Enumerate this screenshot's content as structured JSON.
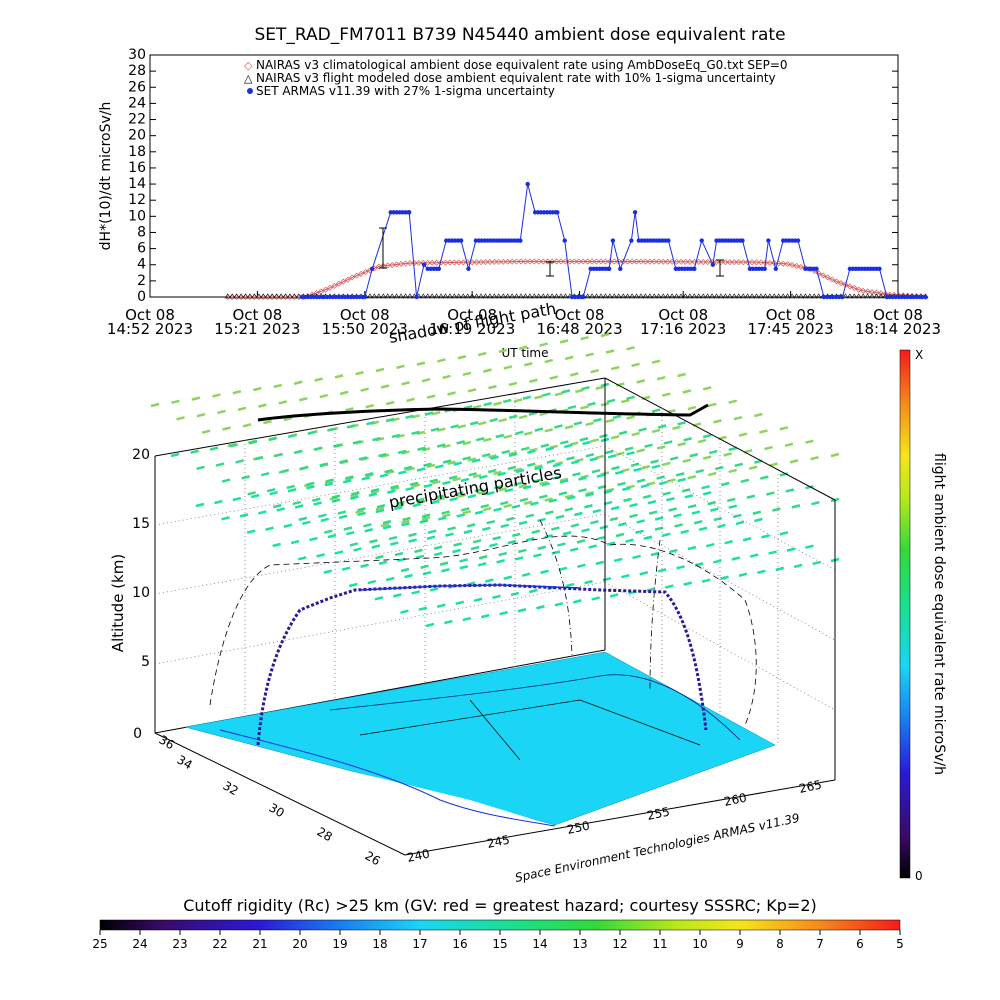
{
  "colors": {
    "nairas_clim": "#d85a5a",
    "nairas_flight": "#000000",
    "armas": "#1a2fe0",
    "surface": "#1ad5f5",
    "particles": "#33d95a"
  },
  "chart_data": [
    {
      "type": "line",
      "title": "SET_RAD_FM7011   B739 N45440 ambient dose equivalent rate",
      "xlabel": "UT time",
      "ylabel": "dH*(10)/dt microSv/h",
      "ylim": [
        0,
        30
      ],
      "yticks": [
        "0",
        "2",
        "4",
        "6",
        "8",
        "10",
        "12",
        "14",
        "16",
        "18",
        "20",
        "22",
        "24",
        "26",
        "28",
        "30"
      ],
      "xticks": [
        {
          "top": "Oct 08",
          "bottom": "14:52 2023"
        },
        {
          "top": "Oct 08",
          "bottom": "15:21 2023"
        },
        {
          "top": "Oct 08",
          "bottom": "15:50 2023"
        },
        {
          "top": "Oct 08",
          "bottom": "16:19 2023"
        },
        {
          "top": "Oct 08",
          "bottom": "16:48 2023"
        },
        {
          "top": "Oct 08",
          "bottom": "17:16 2023"
        },
        {
          "top": "Oct 08",
          "bottom": "17:45 2023"
        },
        {
          "top": "Oct 08",
          "bottom": "18:14 2023"
        }
      ],
      "legend": [
        "NAIRAS v3 climatological ambient dose equivalent rate using AmbDoseEq_G0.txt SEP=0",
        "NAIRAS v3 flight modeled dose ambient equivalent rate with 10% 1-sigma uncertainty",
        "SET ARMAS v11.39 with 27% 1-sigma uncertainty"
      ],
      "legend_position": "top",
      "x_minutes_from_first_tick": [
        0,
        29,
        58,
        87,
        116,
        144,
        173,
        202
      ],
      "series": [
        {
          "name": "SET ARMAS v11.39 with 27% 1-sigma uncertainty",
          "points": [
            [
              41,
              0
            ],
            [
              47,
              0
            ],
            [
              58,
              0
            ],
            [
              60,
              3.5
            ],
            [
              65,
              10.5
            ],
            [
              70,
              10.5
            ],
            [
              72,
              0
            ],
            [
              74,
              4
            ],
            [
              75,
              3.5
            ],
            [
              78,
              3.5
            ],
            [
              80,
              7
            ],
            [
              84,
              7
            ],
            [
              86,
              3.5
            ],
            [
              88,
              7
            ],
            [
              100,
              7
            ],
            [
              102,
              14
            ],
            [
              104,
              10.5
            ],
            [
              110,
              10.5
            ],
            [
              112,
              7
            ],
            [
              114,
              0
            ],
            [
              117,
              0
            ],
            [
              119,
              3.5
            ],
            [
              124,
              3.5
            ],
            [
              125,
              7
            ],
            [
              127,
              3.5
            ],
            [
              130,
              7
            ],
            [
              131,
              10.5
            ],
            [
              132,
              7
            ],
            [
              140,
              7
            ],
            [
              142,
              3.5
            ],
            [
              147,
              3.5
            ],
            [
              149,
              7
            ],
            [
              152,
              4
            ],
            [
              153,
              7
            ],
            [
              160,
              7
            ],
            [
              162,
              3.5
            ],
            [
              166,
              3.5
            ],
            [
              167,
              7
            ],
            [
              169,
              3.5
            ],
            [
              171,
              7
            ],
            [
              175,
              7
            ],
            [
              177,
              3.5
            ],
            [
              180,
              3.5
            ],
            [
              182,
              0
            ],
            [
              187,
              0
            ],
            [
              189,
              3.5
            ],
            [
              197,
              3.5
            ],
            [
              199,
              0
            ],
            [
              210,
              0
            ]
          ]
        },
        {
          "name": "NAIRAS v3 climatological ambient dose equivalent rate using AmbDoseEq_G0.txt SEP=0",
          "points": [
            [
              21,
              0
            ],
            [
              42,
              0
            ],
            [
              48,
              1
            ],
            [
              55,
              2.5
            ],
            [
              62,
              3.8
            ],
            [
              70,
              4.2
            ],
            [
              100,
              4.4
            ],
            [
              130,
              4.4
            ],
            [
              165,
              4.3
            ],
            [
              172,
              4.1
            ],
            [
              178,
              3.5
            ],
            [
              185,
              2
            ],
            [
              192,
              0.8
            ],
            [
              200,
              0.3
            ],
            [
              210,
              0
            ]
          ]
        },
        {
          "name": "NAIRAS v3 flight modeled dose ambient equivalent rate with 10% 1-sigma uncertainty",
          "points": [
            [
              21,
              0
            ],
            [
              210,
              0
            ]
          ]
        }
      ]
    },
    {
      "type": "scatter",
      "title": "",
      "ylabel": "Altitude (km)",
      "zticks": [
        "0",
        "5",
        "10",
        "15",
        "20"
      ],
      "lat_ticks": [
        "36",
        "34",
        "32",
        "30",
        "28",
        "26"
      ],
      "lon_ticks": [
        "240",
        "245",
        "250",
        "255",
        "260",
        "265"
      ],
      "annotations": [
        "precipitating particles",
        "shadow of flight path"
      ],
      "credit": "Space Environment Technologies ARMAS v11.39",
      "colorbar_label": "flight ambient dose equivalent rate microSv/h",
      "colorbar_ticks": [
        "X",
        "0"
      ],
      "flight_altitude_km": 10.5
    },
    {
      "type": "heatmap",
      "title": "Cutoff rigidity (Rc) >25 km (GV: red = greatest hazard; courtesy SSSRC; Kp=2)",
      "ticks": [
        "25",
        "24",
        "23",
        "22",
        "21",
        "20",
        "19",
        "18",
        "17",
        "16",
        "15",
        "14",
        "13",
        "12",
        "11",
        "10",
        "9",
        "8",
        "7",
        "6",
        "5"
      ]
    }
  ]
}
